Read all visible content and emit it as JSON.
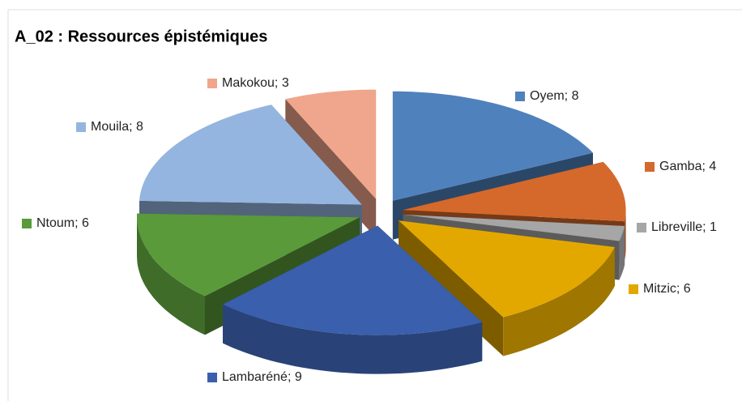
{
  "chart_data": {
    "type": "pie3d",
    "title": "A_02 : Ressources épistémiques",
    "values": [
      8,
      4,
      1,
      6,
      9,
      6,
      8,
      3
    ],
    "value_labels": [
      "Oyem; 8",
      "Gamba; 4",
      "Libreville; 1",
      "Mitzic; 6",
      "Lambaréné; 9",
      "Ntoum; 6",
      "Mouila; 8",
      "Makokou; 3"
    ],
    "colors": [
      "#4f81bd",
      "#d4692b",
      "#a6a6a6",
      "#e3a800",
      "#3a5fad",
      "#5a9a3a",
      "#94b5df",
      "#f0a68c"
    ]
  }
}
